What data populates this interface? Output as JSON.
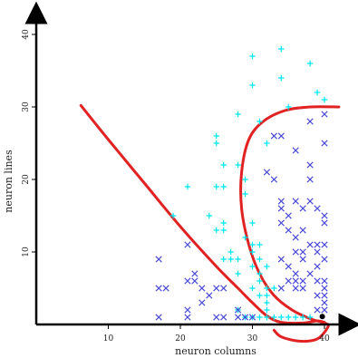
{
  "chart_data": {
    "type": "scatter",
    "title": "",
    "xlabel": "neuron columns",
    "ylabel": "neuron lines",
    "xlim": [
      0,
      42
    ],
    "ylim": [
      0,
      42
    ],
    "xticks": [
      10,
      20,
      30,
      40
    ],
    "yticks": [
      10,
      20,
      30,
      40
    ],
    "grid": false,
    "colors": {
      "cyan_plus": "#00e5ee",
      "blue_x": "#4b4bd6",
      "boundary": "#e02222",
      "axis": "#000000",
      "marker_dot": "#000000"
    },
    "series": [
      {
        "marker": "plus",
        "color": "#00e5ee",
        "points": [
          [
            30,
            37
          ],
          [
            34,
            38
          ],
          [
            38,
            36
          ],
          [
            30,
            33
          ],
          [
            34,
            34
          ],
          [
            39,
            32
          ],
          [
            35,
            30
          ],
          [
            40,
            31
          ],
          [
            28,
            29
          ],
          [
            31,
            28
          ],
          [
            25,
            26
          ],
          [
            25,
            25
          ],
          [
            32,
            25
          ],
          [
            26,
            22
          ],
          [
            28,
            22
          ],
          [
            29,
            20
          ],
          [
            21,
            19
          ],
          [
            25,
            19
          ],
          [
            26,
            19
          ],
          [
            29,
            18
          ],
          [
            19,
            15
          ],
          [
            24,
            15
          ],
          [
            26,
            14
          ],
          [
            30,
            14
          ],
          [
            25,
            13
          ],
          [
            26,
            13
          ],
          [
            29,
            12
          ],
          [
            30,
            11
          ],
          [
            31,
            11
          ],
          [
            27,
            10
          ],
          [
            30,
            10
          ],
          [
            26,
            9
          ],
          [
            27,
            9
          ],
          [
            28,
            9
          ],
          [
            31,
            9
          ],
          [
            32,
            8
          ],
          [
            30,
            8
          ],
          [
            28,
            7
          ],
          [
            31,
            7
          ],
          [
            31,
            6
          ],
          [
            32,
            5
          ],
          [
            30,
            5
          ],
          [
            33,
            5
          ],
          [
            31,
            4
          ],
          [
            32,
            4
          ],
          [
            32,
            3
          ],
          [
            32,
            2
          ],
          [
            31,
            1
          ],
          [
            32,
            1
          ],
          [
            33,
            1
          ],
          [
            34,
            1
          ],
          [
            35,
            1
          ],
          [
            36,
            1
          ],
          [
            37,
            1
          ],
          [
            38,
            1
          ],
          [
            30,
            1
          ],
          [
            29,
            1
          ],
          [
            28,
            2
          ]
        ]
      },
      {
        "marker": "x",
        "color": "#4b4bd6",
        "points": [
          [
            40,
            29
          ],
          [
            38,
            28
          ],
          [
            33,
            26
          ],
          [
            34,
            26
          ],
          [
            36,
            24
          ],
          [
            40,
            25
          ],
          [
            38,
            22
          ],
          [
            32,
            21
          ],
          [
            33,
            20
          ],
          [
            38,
            20
          ],
          [
            34,
            17
          ],
          [
            36,
            17
          ],
          [
            38,
            17
          ],
          [
            37,
            16
          ],
          [
            39,
            16
          ],
          [
            34,
            16
          ],
          [
            35,
            15
          ],
          [
            40,
            15
          ],
          [
            40,
            14
          ],
          [
            34,
            14
          ],
          [
            35,
            13
          ],
          [
            37,
            13
          ],
          [
            36,
            12
          ],
          [
            38,
            11
          ],
          [
            39,
            11
          ],
          [
            40,
            11
          ],
          [
            36,
            10
          ],
          [
            37,
            10
          ],
          [
            39,
            10
          ],
          [
            34,
            9
          ],
          [
            37,
            9
          ],
          [
            40,
            9
          ],
          [
            35,
            8
          ],
          [
            39,
            8
          ],
          [
            36,
            7
          ],
          [
            38,
            7
          ],
          [
            35,
            6
          ],
          [
            36,
            6
          ],
          [
            37,
            6
          ],
          [
            39,
            6
          ],
          [
            40,
            6
          ],
          [
            34,
            5
          ],
          [
            36,
            5
          ],
          [
            37,
            5
          ],
          [
            40,
            5
          ],
          [
            39,
            4
          ],
          [
            40,
            4
          ],
          [
            40,
            3
          ],
          [
            39,
            2
          ],
          [
            40,
            2
          ],
          [
            17,
            9
          ],
          [
            17,
            5
          ],
          [
            18,
            5
          ],
          [
            21,
            11
          ],
          [
            22,
            7
          ],
          [
            21,
            6
          ],
          [
            22,
            6
          ],
          [
            23,
            5
          ],
          [
            25,
            5
          ],
          [
            26,
            5
          ],
          [
            24,
            4
          ],
          [
            23,
            3
          ],
          [
            28,
            2
          ],
          [
            21,
            2
          ],
          [
            17,
            1
          ],
          [
            21,
            1
          ],
          [
            25,
            1
          ],
          [
            26,
            1
          ],
          [
            28,
            1
          ],
          [
            29,
            1
          ],
          [
            30,
            1
          ]
        ]
      }
    ],
    "boundaries": [
      {
        "color": "#e02222",
        "points": [
          [
            6.2,
            30.2
          ],
          [
            10,
            25.5
          ],
          [
            15,
            19.5
          ],
          [
            20,
            13.5
          ],
          [
            25,
            8
          ],
          [
            28,
            5
          ],
          [
            30,
            3
          ],
          [
            32,
            1.2
          ],
          [
            34,
            0.3
          ],
          [
            37,
            0.2
          ],
          [
            39,
            0.5
          ],
          [
            40,
            0.3
          ]
        ]
      },
      {
        "color": "#e02222",
        "points": [
          [
            42,
            30
          ],
          [
            38,
            30
          ],
          [
            34.5,
            29.5
          ],
          [
            31.5,
            28
          ],
          [
            29.5,
            25.5
          ],
          [
            28.5,
            21
          ],
          [
            28.5,
            16
          ],
          [
            29.5,
            11
          ],
          [
            31,
            7
          ],
          [
            33,
            4
          ],
          [
            35.5,
            2
          ],
          [
            38,
            0.8
          ],
          [
            40,
            0.2
          ],
          [
            40.5,
            -0.3
          ],
          [
            39,
            -2
          ],
          [
            36.5,
            -2.3
          ],
          [
            34,
            -1.7
          ],
          [
            33,
            -0.8
          ]
        ]
      }
    ],
    "markers": [
      {
        "type": "dot",
        "x": 39.7,
        "y": 1.1
      }
    ]
  }
}
